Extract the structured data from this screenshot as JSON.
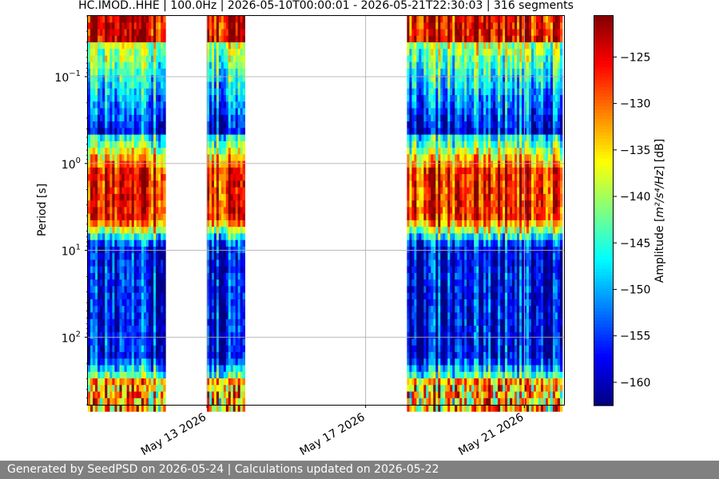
{
  "chart_data": {
    "type": "heatmap",
    "title": "HC.IMOD..HHE | 100.0Hz | 2026-05-10T00:00:01 - 2026-05-21T22:30:03 | 316 segments",
    "ylabel": "Period [s]",
    "y_scale": "log",
    "y_inverted": true,
    "y_ticks": [
      {
        "value": 0.1,
        "label_base": "10",
        "label_exp": "−1"
      },
      {
        "value": 1,
        "label_base": "10",
        "label_exp": "0"
      },
      {
        "value": 10,
        "label_base": "10",
        "label_exp": "1"
      },
      {
        "value": 100,
        "label_base": "10",
        "label_exp": "2"
      }
    ],
    "ylim": [
      0.02,
      600
    ],
    "xlim": [
      "2026-05-10T00:00:00",
      "2026-05-22T00:00:00"
    ],
    "x_ticks": [
      {
        "value": "2026-05-13",
        "label": "May 13 2026"
      },
      {
        "value": "2026-05-17",
        "label": "May 17 2026"
      },
      {
        "value": "2026-05-21",
        "label": "May 21 2026"
      }
    ],
    "data_segments": [
      {
        "start": "2026-05-10T00:00:00",
        "end": "2026-05-11T23:00:00"
      },
      {
        "start": "2026-05-13T00:00:00",
        "end": "2026-05-13T23:00:00"
      },
      {
        "start": "2026-05-18T01:00:00",
        "end": "2026-05-21T23:00:00"
      }
    ],
    "colorbar": {
      "label_prefix": "Amplitude [",
      "label_math": "m²/s⁴/Hz",
      "label_suffix": "] [dB]",
      "colormap": "jet",
      "range": [
        -162.5,
        -120.5
      ],
      "ticks": [
        -125,
        -130,
        -135,
        -140,
        -145,
        -150,
        -155,
        -160
      ]
    },
    "grid": true
  },
  "footer": {
    "text": "Generated by SeedPSD on 2026-05-24 | Calculations updated on 2026-05-22"
  }
}
